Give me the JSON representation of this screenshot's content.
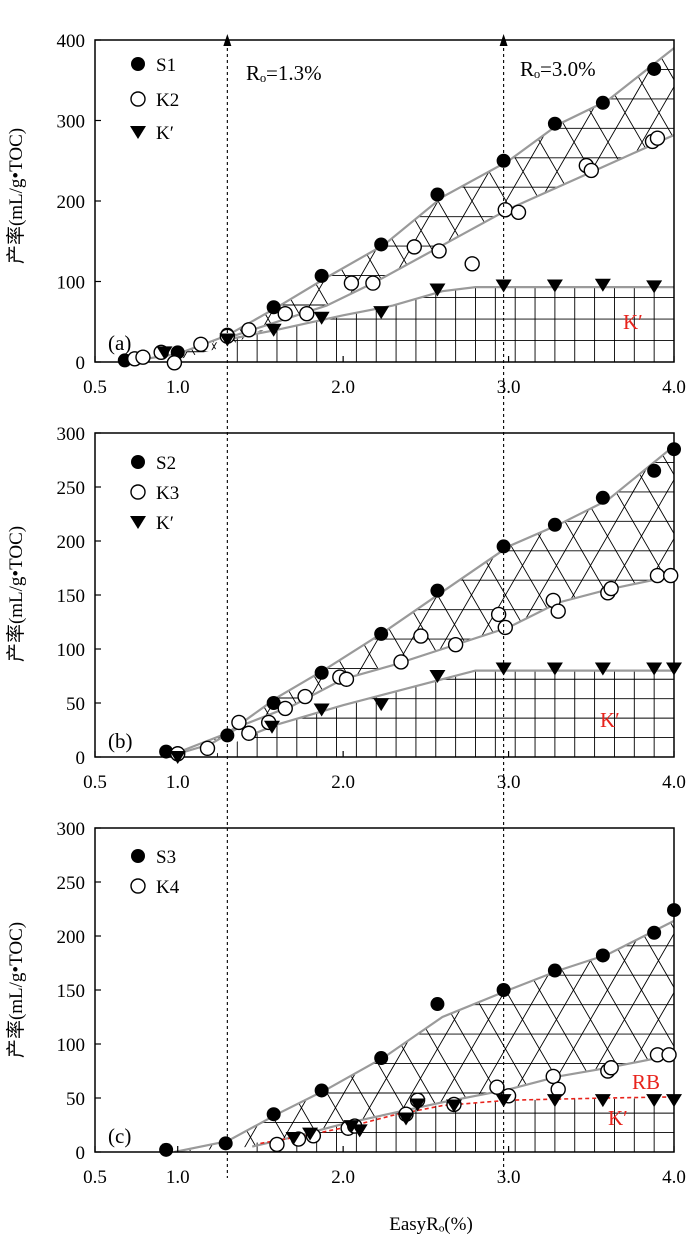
{
  "chart_data": [
    {
      "type": "scatter",
      "panel_label": "(a)",
      "ylabel": "产率(mL/g•TOC)",
      "xlabel": "",
      "xlim": [
        0.5,
        4.0
      ],
      "ylim": [
        0,
        400
      ],
      "xticks": [
        "0.5",
        "1.0",
        "2.0",
        "3.0",
        "4.0"
      ],
      "yticks": [
        "0",
        "100",
        "200",
        "300",
        "400"
      ],
      "series": [
        {
          "name": "S1",
          "marker": "filled-circle",
          "x": [
            0.68,
            1.0,
            1.3,
            1.58,
            1.87,
            2.23,
            2.57,
            2.97,
            3.28,
            3.57,
            3.88
          ],
          "y": [
            2,
            12,
            34,
            68,
            107,
            146,
            208,
            250,
            296,
            322,
            364
          ]
        },
        {
          "name": "K2",
          "marker": "open-circle",
          "x": [
            0.74,
            0.79,
            0.9,
            0.98,
            1.14,
            1.3,
            1.43,
            1.65,
            1.78,
            2.05,
            2.18,
            2.43,
            2.58,
            2.78,
            2.98,
            3.06,
            3.47,
            3.5,
            3.87,
            3.9
          ],
          "y": [
            4,
            6,
            12,
            -1,
            22,
            32,
            40,
            60,
            60,
            98,
            98,
            143,
            138,
            122,
            189,
            186,
            244,
            238,
            274,
            278
          ]
        },
        {
          "name": "K′",
          "marker": "filled-triangle-down",
          "x": [
            0.92,
            1.3,
            1.58,
            1.87,
            2.23,
            2.57,
            2.97,
            3.28,
            3.57,
            3.88
          ],
          "y": [
            12,
            28,
            40,
            55,
            62,
            90,
            95,
            95,
            96,
            94
          ]
        }
      ],
      "region_labels": [
        "K′"
      ]
    },
    {
      "type": "scatter",
      "panel_label": "(b)",
      "ylabel": "产率(mL/g•TOC)",
      "xlabel": "",
      "xlim": [
        0.5,
        4.0
      ],
      "ylim": [
        0,
        300
      ],
      "xticks": [
        "0.5",
        "1.0",
        "2.0",
        "3.0",
        "4.0"
      ],
      "yticks": [
        "0",
        "50",
        "100",
        "150",
        "200",
        "250",
        "300"
      ],
      "series": [
        {
          "name": "S2",
          "marker": "filled-circle",
          "x": [
            0.93,
            1.3,
            1.58,
            1.87,
            2.23,
            2.57,
            2.97,
            3.28,
            3.57,
            3.88,
            4.0
          ],
          "y": [
            5,
            20,
            50,
            78,
            114,
            154,
            195,
            215,
            240,
            265,
            285
          ]
        },
        {
          "name": "K3",
          "marker": "open-circle",
          "x": [
            1.0,
            1.18,
            1.37,
            1.43,
            1.55,
            1.65,
            1.77,
            1.98,
            2.02,
            2.35,
            2.47,
            2.68,
            2.94,
            2.98,
            3.27,
            3.3,
            3.6,
            3.62,
            3.9,
            3.98
          ],
          "y": [
            3,
            8,
            32,
            22,
            32,
            45,
            56,
            74,
            72,
            88,
            112,
            104,
            132,
            120,
            145,
            135,
            152,
            156,
            168,
            168
          ]
        },
        {
          "name": "K′",
          "marker": "filled-triangle-down",
          "x": [
            1.0,
            1.57,
            1.87,
            2.23,
            2.57,
            2.97,
            3.28,
            3.57,
            3.88,
            4.0
          ],
          "y": [
            0,
            28,
            44,
            49,
            75,
            82,
            82,
            82,
            82,
            82
          ]
        }
      ],
      "region_labels": [
        "K′"
      ]
    },
    {
      "type": "scatter",
      "panel_label": "(c)",
      "ylabel": "产率(mL/g•TOC)",
      "xlabel": "EasyRₒ(%)",
      "xlim": [
        0.5,
        4.0
      ],
      "ylim": [
        0,
        300
      ],
      "xticks": [
        "0.5",
        "1.0",
        "2.0",
        "3.0",
        "4.0"
      ],
      "yticks": [
        "0",
        "50",
        "100",
        "150",
        "200",
        "250",
        "300"
      ],
      "series": [
        {
          "name": "S3",
          "marker": "filled-circle",
          "x": [
            0.93,
            1.29,
            1.58,
            1.87,
            2.23,
            2.57,
            2.97,
            3.28,
            3.57,
            3.88,
            4.0
          ],
          "y": [
            2,
            8,
            35,
            57,
            87,
            137,
            150,
            168,
            182,
            203,
            224
          ]
        },
        {
          "name": "K4",
          "marker": "open-circle",
          "x": [
            1.6,
            1.73,
            1.82,
            2.03,
            2.07,
            2.38,
            2.45,
            2.67,
            2.93,
            3.0,
            3.27,
            3.3,
            3.6,
            3.62,
            3.9,
            3.97
          ],
          "y": [
            7,
            12,
            15,
            22,
            24,
            35,
            48,
            44,
            60,
            52,
            70,
            58,
            75,
            78,
            90,
            90
          ]
        },
        {
          "name": "",
          "marker": "filled-triangle-down",
          "x": [
            1.7,
            1.8,
            2.05,
            2.1,
            2.38,
            2.45,
            2.67,
            2.97,
            3.28,
            3.57,
            3.88,
            4.0
          ],
          "y": [
            13,
            17,
            24,
            20,
            31,
            44,
            43,
            48,
            48,
            48,
            48,
            48
          ]
        }
      ],
      "region_labels": [
        "RB",
        "K′"
      ]
    }
  ],
  "annotations": {
    "ro_13": "Rₒ=1.3%",
    "ro_30": "Rₒ=3.0%",
    "ro_13_x": 1.3,
    "ro_30_x": 2.97
  },
  "colors": {
    "axis": "#000000",
    "envelope": "#9a9a9a",
    "hatch": "#000000",
    "region_label": "#e8231c",
    "rb_line": "#e8231c"
  }
}
